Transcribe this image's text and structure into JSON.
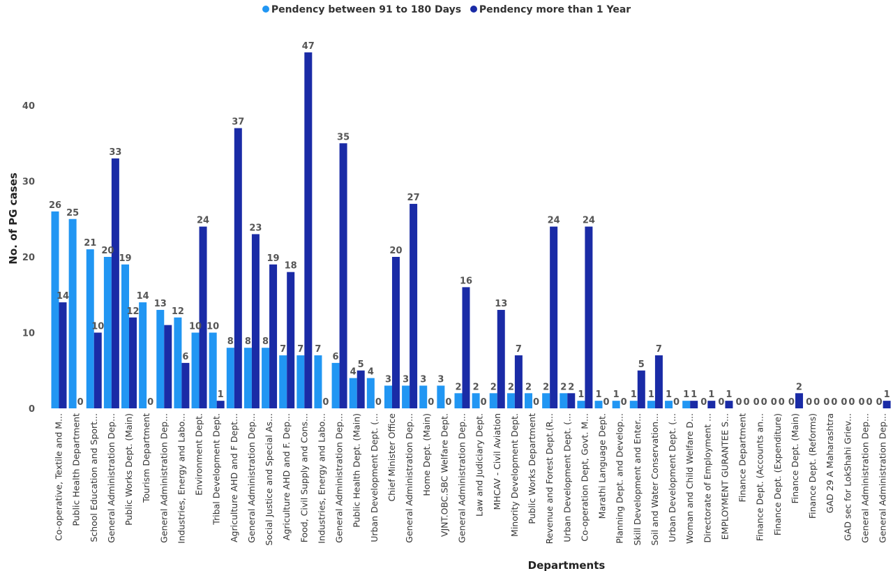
{
  "chart_data": {
    "type": "bar",
    "xlabel": "Departments",
    "ylabel": "No. of PG cases",
    "ylim": [
      0,
      50
    ],
    "yticks": [
      0,
      10,
      20,
      30,
      40
    ],
    "legend_position": "top-center",
    "grid": false,
    "colors": {
      "s1": "#2196f3",
      "s2": "#1a2ba6"
    },
    "categories": [
      "Co-operative, Textile and M...",
      "Public Health Department",
      "School Education and Sport...",
      "General Administration Dep...",
      "Public Works Dept. (Main)",
      "Tourism Department",
      "General Administration Dep...",
      "Industries, Energy and Labo...",
      "Environment Dept.",
      "Tribal Development Dept.",
      "Agriculture AHD and F Dept...",
      "General Administration Dep...",
      "Social Justice and Special As...",
      "Agriculture AHD and F. Dep...",
      "Food, Civil Supply and Cons...",
      "Industries, Energy and Labo...",
      "General Administration Dep...",
      "Public Health Dept. (Main)",
      "Urban Development Dept. (...",
      "Chief Minister Office",
      "General Administration Dep...",
      "Home Dept. (Main)",
      "VJNT.OBC.SBC Welfare Dept.",
      "General Administration Dep...",
      "Law and Judiciary Dept.",
      "MHCAV - Civil Aviation",
      "Minority Development Dept.",
      "Public Works Department",
      "Revenue and Forest Dept.(R...",
      "Urban Development Dept. (...",
      "Co-operation Dept, Govt. M...",
      "Marathi Language Dept.",
      "Planning Dept. and Develop...",
      "Skill Development and Enter...",
      "Soil and Water Conservation...",
      "Urban Development Dept. (...",
      "Woman and Child Welfare D...",
      "Directorate of Employment ...",
      "EMPLOYMENT GURANTEE S...",
      "Finance Department",
      "Finance Dept. (Accounts an...",
      "Finance Dept. (Expenditure)",
      "Finance Dept. (Main)",
      "Finance Dept. (Reforms)",
      "GAD 29 A Maharashtra",
      "GAD sec for LokShahi Griev...",
      "General Administration Dep...",
      "General Administration Dep..."
    ],
    "series": [
      {
        "name": "Pendency between 91 to 180 Days",
        "values": [
          26,
          25,
          21,
          20,
          19,
          14,
          13,
          12,
          10,
          10,
          8,
          8,
          8,
          7,
          7,
          7,
          6,
          4,
          4,
          3,
          3,
          3,
          3,
          2,
          2,
          2,
          2,
          2,
          2,
          2,
          1,
          1,
          1,
          1,
          1,
          1,
          1,
          0,
          0,
          0,
          0,
          0,
          0,
          0,
          0,
          0,
          0,
          0
        ]
      },
      {
        "name": "Pendency more than 1 Year",
        "values": [
          14,
          0,
          10,
          33,
          12,
          0,
          11,
          6,
          24,
          1,
          37,
          23,
          19,
          18,
          47,
          0,
          35,
          5,
          0,
          20,
          27,
          0,
          0,
          16,
          0,
          13,
          7,
          0,
          24,
          2,
          24,
          0,
          0,
          5,
          7,
          0,
          1,
          1,
          1,
          0,
          0,
          0,
          2,
          0,
          0,
          0,
          0,
          1
        ]
      }
    ],
    "data_labels": {
      "s1": [
        "26",
        "25",
        "21",
        "20",
        "19",
        "14",
        "13",
        "12",
        "10",
        "10",
        "8",
        "8",
        "8",
        "7",
        "7",
        "7",
        "6",
        "4",
        "4",
        "3",
        "3",
        "3",
        "3",
        "2",
        "2",
        "2",
        "2",
        "2",
        "2",
        "2",
        "1",
        "1",
        "1",
        "1",
        "1",
        "1",
        "1",
        "0",
        "0",
        "0",
        "0",
        "0",
        "0",
        "0",
        "0",
        "0",
        "0",
        "0"
      ],
      "s2": [
        "14",
        "0",
        "10",
        "33",
        "12",
        "0",
        "",
        "6",
        "24",
        "1",
        "37",
        "23",
        "19",
        "18",
        "47",
        "0",
        "35",
        "5",
        "0",
        "20",
        "27",
        "0",
        "0",
        "16",
        "0",
        "13",
        "7",
        "0",
        "24",
        "2",
        "24",
        "0",
        "0",
        "5",
        "7",
        "0",
        "1",
        "1",
        "1",
        "0",
        "0",
        "0",
        "2",
        "0",
        "0",
        "0",
        "0",
        "1"
      ]
    }
  }
}
